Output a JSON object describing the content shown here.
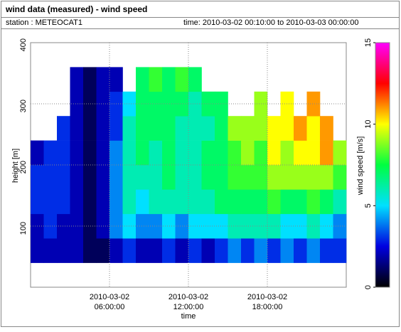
{
  "chart_data": {
    "type": "heatmap",
    "title": "wind data (measured) - wind speed",
    "station": "station : METEOCAT1",
    "time_range": "time: 2010-03-02 00:10:00 to 2010-03-03 00:00:00",
    "x_label": "time",
    "y_label": "height [m]",
    "colorbar_label": "wind speed [m/s]",
    "x": [
      0.5,
      1.5,
      2.5,
      3.5,
      4.5,
      5.5,
      6.5,
      7.5,
      8.5,
      9.5,
      10.5,
      11.5,
      12.5,
      13.5,
      14.5,
      15.5,
      16.5,
      17.5,
      18.5,
      19.5,
      20.5,
      21.5,
      22.5,
      23.5
    ],
    "y": [
      60,
      100,
      140,
      180,
      220,
      260,
      300,
      340
    ],
    "values": [
      [
        2,
        2,
        2,
        2,
        1,
        1,
        2,
        3,
        2,
        2,
        3,
        2,
        3,
        2,
        3,
        4,
        3,
        4,
        3,
        4,
        3,
        4,
        3,
        3
      ],
      [
        2,
        3,
        2,
        2,
        1,
        2,
        4,
        5,
        4,
        4,
        5,
        4,
        5,
        5,
        5,
        6,
        6,
        6,
        6,
        5,
        5,
        6,
        5,
        4
      ],
      [
        3,
        3,
        3,
        2,
        1,
        2,
        4,
        6,
        5,
        6,
        6,
        6,
        6,
        6,
        7,
        7,
        7,
        7,
        8,
        7,
        7,
        8,
        7,
        6
      ],
      [
        3,
        3,
        3,
        2,
        1,
        2,
        4,
        6,
        6,
        6,
        7,
        6,
        6,
        7,
        7,
        8,
        8,
        8,
        9,
        9,
        9,
        9,
        9,
        8
      ],
      [
        2,
        3,
        3,
        2,
        1,
        2,
        4,
        6,
        7,
        6,
        7,
        6,
        6,
        7,
        7,
        8,
        9,
        8,
        10,
        9,
        10,
        10,
        11,
        9
      ],
      [
        null,
        null,
        3,
        2,
        1,
        2,
        3,
        6,
        7,
        7,
        7,
        6,
        6,
        6,
        7,
        9,
        9,
        9,
        10,
        10,
        11,
        10,
        11,
        null
      ],
      [
        null,
        null,
        null,
        2,
        1,
        2,
        3,
        5,
        7,
        7,
        7,
        7,
        6,
        7,
        7,
        null,
        null,
        9,
        null,
        10,
        null,
        11,
        null,
        null
      ],
      [
        null,
        null,
        null,
        2,
        1,
        2,
        2,
        null,
        7,
        8,
        7,
        8,
        7,
        null,
        null,
        null,
        null,
        null,
        null,
        null,
        null,
        null,
        null,
        null
      ]
    ],
    "xlim": [
      0,
      24
    ],
    "ylim": [
      0,
      400
    ],
    "xticks": [
      {
        "value": 6,
        "label": [
          "2010-03-02",
          "06:00:00"
        ]
      },
      {
        "value": 12,
        "label": [
          "2010-03-02",
          "12:00:00"
        ]
      },
      {
        "value": 18,
        "label": [
          "2010-03-02",
          "18:00:00"
        ]
      }
    ],
    "yticks": [
      100,
      200,
      300,
      400
    ],
    "zlim": [
      0,
      15
    ],
    "zticks": [
      0,
      5,
      10,
      15
    ],
    "colorscale": [
      "#000000",
      "#0000e0",
      "#00e0ff",
      "#00ff40",
      "#ffff00",
      "#ff0000",
      "#ff00ff"
    ],
    "grid": true
  }
}
